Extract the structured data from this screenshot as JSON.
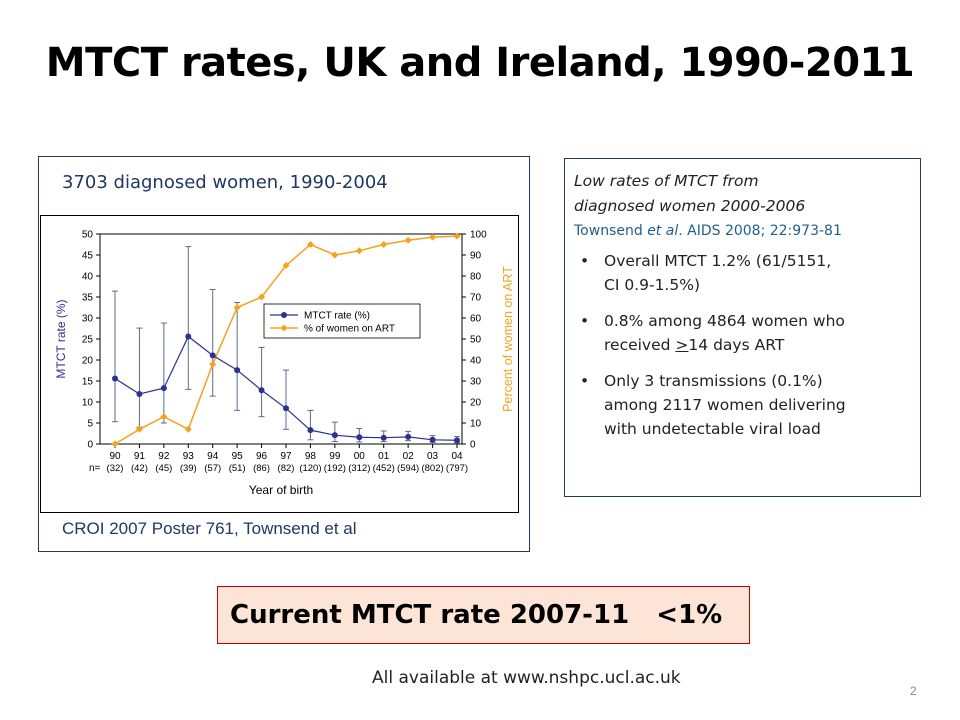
{
  "slide": {
    "title": "MTCT rates, UK and Ireland, 1990-2011",
    "left_caption": "3703 diagnosed women, 1990-2004",
    "credit": "CROI 2007 Poster 761, Townsend et al",
    "right": {
      "heading_line1": "Low rates of MTCT from",
      "heading_line2": "diagnosed women 2000-2006",
      "ref_prefix": "Townsend ",
      "ref_etal": "et al",
      "ref_suffix": ". AIDS 2008; 22:973-81",
      "b1_line1": "Overall MTCT 1.2% (61/5151,",
      "b1_line2": "CI 0.9-1.5%)",
      "b2_line1": "0.8% among 4864 women who",
      "b2_pre": "received ",
      "b2_u": ">",
      "b2_post": "14 days ART",
      "b3_line1": "Only 3 transmissions (0.1%)",
      "b3_line2": "among 2117 women delivering",
      "b3_line3": "with undetectable viral load",
      "bullet": "•"
    },
    "current": "Current MTCT rate 2007-11   <1%",
    "footer": "All available at www.nshpc.ucl.ac.uk",
    "page_number": "2"
  },
  "chart_data": {
    "type": "line",
    "categories": [
      "90",
      "91",
      "92",
      "93",
      "94",
      "95",
      "96",
      "97",
      "98",
      "99",
      "00",
      "01",
      "02",
      "03",
      "04"
    ],
    "n_prefix": "n=",
    "n_labels": [
      "(32)",
      "(42)",
      "(45)",
      "(39)",
      "(57)",
      "(51)",
      "(86)",
      "(82)",
      "(120)",
      "(192)",
      "(312)",
      "(452)",
      "(594)",
      "(802)",
      "(797)"
    ],
    "xlabel": "Year of birth",
    "ylabel": "MTCT rate (%)",
    "y2label": "Percent of women on ART",
    "ylim": [
      0,
      50
    ],
    "y2lim": [
      0,
      100
    ],
    "yticks": [
      0,
      5,
      10,
      15,
      20,
      25,
      30,
      35,
      40,
      45,
      50
    ],
    "y2ticks": [
      0,
      10,
      20,
      30,
      40,
      50,
      60,
      70,
      80,
      90,
      100
    ],
    "series": [
      {
        "name": "MTCT rate (%)",
        "axis": "left",
        "color": "#2e3192",
        "values": [
          15.6,
          11.9,
          13.3,
          25.6,
          21.1,
          17.6,
          12.8,
          8.5,
          3.3,
          2.1,
          1.6,
          1.5,
          1.7,
          1.0,
          0.9
        ],
        "err_low": [
          5.3,
          4.0,
          5.0,
          13.0,
          11.4,
          8.0,
          6.5,
          3.5,
          1.0,
          0.6,
          0.5,
          0.6,
          0.8,
          0.4,
          0.3
        ],
        "err_high": [
          36.4,
          27.6,
          28.8,
          47.0,
          36.8,
          33.7,
          23.0,
          17.6,
          8.0,
          5.2,
          3.7,
          3.1,
          3.0,
          2.0,
          1.8
        ]
      },
      {
        "name": "% of women on ART",
        "axis": "right",
        "color": "#f7a21c",
        "values": [
          0,
          7,
          13,
          7,
          38,
          65,
          70,
          85,
          95,
          90,
          92,
          95,
          97,
          98.5,
          99
        ]
      }
    ]
  }
}
